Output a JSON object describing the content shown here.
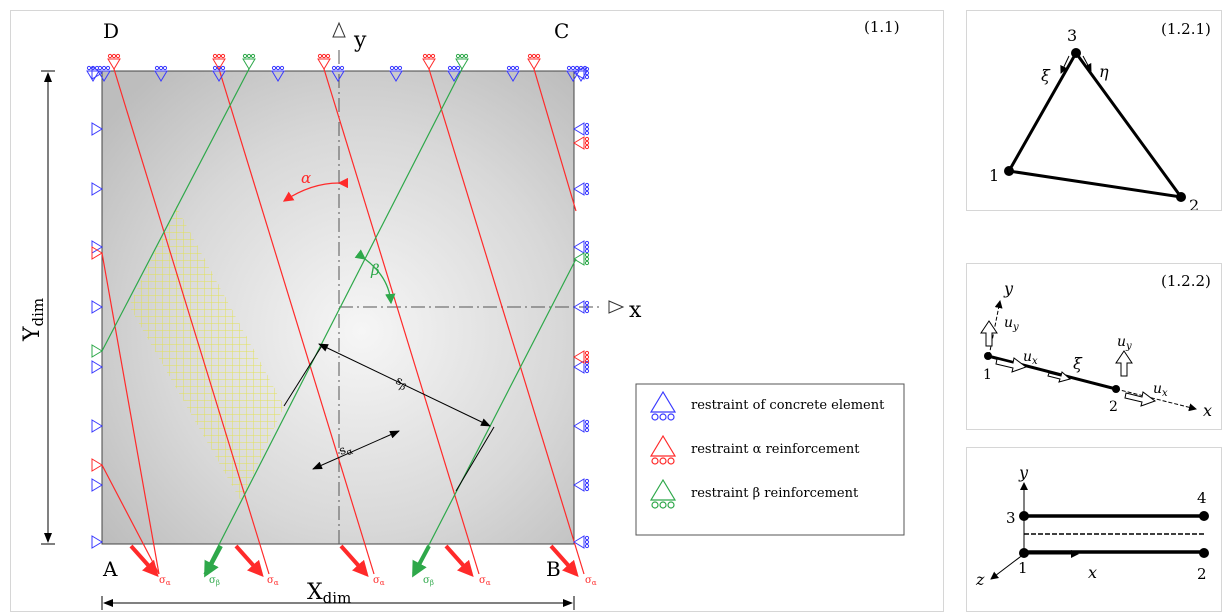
{
  "main": {
    "label": "(1.1)",
    "corners": {
      "A": "A",
      "B": "B",
      "C": "C",
      "D": "D"
    },
    "axes": {
      "x": "x",
      "y": "y"
    },
    "dims": {
      "x_base": "X",
      "x_sub": "dim",
      "y_base": "Y",
      "y_sub": "dim"
    },
    "angles": {
      "alpha": "α",
      "beta": "β"
    },
    "spacing": {
      "s_alpha_base": "s",
      "s_alpha_sub": "α",
      "s_beta_base": "s",
      "s_beta_sub": "β"
    },
    "stress": {
      "alpha_base": "σ",
      "alpha_sub": "α",
      "beta_base": "σ",
      "beta_sub": "β"
    },
    "legend": [
      {
        "label": "restraint of concrete element",
        "color": "#3a3aff",
        "icon": "restraint-triangle-icon"
      },
      {
        "label": "restraint  α reinforcement",
        "color": "#ff2a2a",
        "icon": "restraint-triangle-icon"
      },
      {
        "label": "restraint β reinforcement",
        "color": "#2ea84a",
        "icon": "restraint-triangle-icon"
      }
    ]
  },
  "triangle": {
    "label": "(1.2.1)",
    "nodes": [
      "1",
      "2",
      "3"
    ],
    "xi": "ξ",
    "eta": "η"
  },
  "bar": {
    "label": "(1.2.2)",
    "y": "y",
    "x": "x",
    "uy_base": "u",
    "uy_sub": "y",
    "ux_base": "u",
    "ux_sub": "x",
    "xi": "ξ",
    "nodes": [
      "1",
      "2"
    ]
  },
  "beam": {
    "y": "y",
    "x": "x",
    "z": "z",
    "nodes": [
      "1",
      "2",
      "3",
      "4"
    ]
  },
  "colors": {
    "concrete": "#3a3aff",
    "alpha": "#ff2a2a",
    "beta": "#2ea84a",
    "hatch": "#e8e860"
  }
}
